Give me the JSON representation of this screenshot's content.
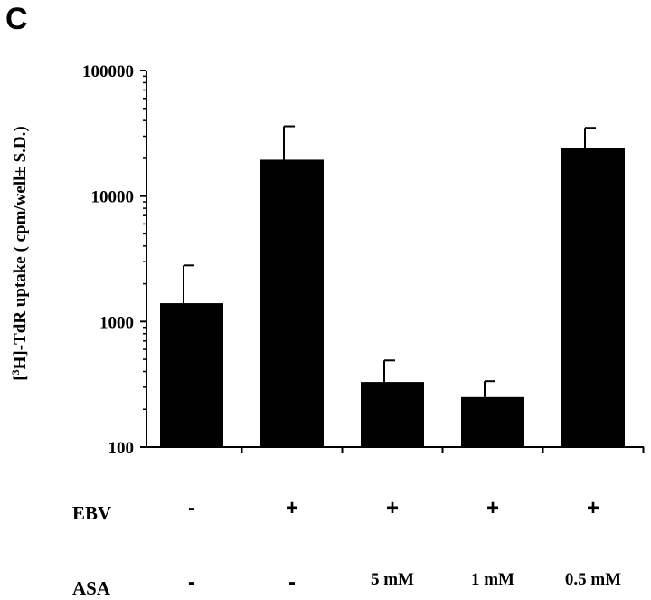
{
  "panel_label": "C",
  "colors": {
    "bar": "#000000",
    "axis": "#000000",
    "background": "#ffffff"
  },
  "ylabel": {
    "prefix": "[",
    "sup": "3",
    "rest": "H]-TdR uptake ( cpm/well± S.D.)"
  },
  "rows": {
    "ebv": {
      "label": "EBV",
      "values": [
        "-",
        "+",
        "+",
        "+",
        "+"
      ]
    },
    "asa": {
      "label": "ASA",
      "values": [
        "-",
        "-",
        "5 mM",
        "1 mM",
        "0.5 mM"
      ]
    }
  },
  "chart_data": {
    "type": "bar",
    "yscale": "log",
    "ylim": [
      100,
      100000
    ],
    "yticks": [
      100,
      1000,
      10000,
      100000
    ],
    "ytick_labels": [
      "100",
      "1000",
      "10000",
      "100000"
    ],
    "categories": [
      "EBV - / ASA -",
      "EBV + / ASA -",
      "EBV + / ASA 5 mM",
      "EBV + / ASA 1 mM",
      "EBV + / ASA 0.5 mM"
    ],
    "values": [
      1400,
      19500,
      330,
      250,
      24000
    ],
    "error_upper": [
      2800,
      36000,
      490,
      335,
      35000
    ],
    "grid": false,
    "legend": "none"
  }
}
